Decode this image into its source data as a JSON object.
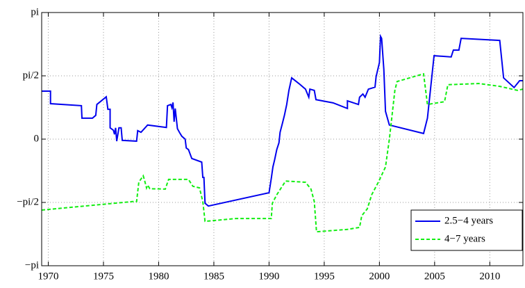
{
  "chart_data": {
    "type": "line",
    "xlim": [
      1969.4,
      2013
    ],
    "xticks": [
      1970,
      1975,
      1980,
      1985,
      1990,
      1995,
      2000,
      2005,
      2010
    ],
    "ylim": [
      -3.1416,
      3.1416
    ],
    "yticks": [
      {
        "value": -3.1416,
        "label": "−pi"
      },
      {
        "value": -1.5708,
        "label": "−pi/2"
      },
      0,
      {
        "value": 1.5708,
        "label": "pi/2"
      },
      {
        "value": 3.1416,
        "label": "pi"
      }
    ],
    "grid": true,
    "legend": "lower right",
    "series": [
      {
        "name": "2.5−4 years",
        "color": "#0000ee",
        "style": "solid",
        "x": [
          1969.4,
          1970.2,
          1970.2,
          1973.0,
          1973.05,
          1974.0,
          1974.3,
          1974.4,
          1975.25,
          1975.4,
          1975.6,
          1975.6,
          1975.9,
          1976.0,
          1976.1,
          1976.2,
          1976.4,
          1976.6,
          1976.7,
          1978.0,
          1978.1,
          1978.4,
          1979.0,
          1980.7,
          1980.8,
          1981.1,
          1981.2,
          1981.3,
          1981.4,
          1981.5,
          1981.7,
          1981.9,
          1982.1,
          1982.4,
          1982.5,
          1982.7,
          1983.0,
          1983.9,
          1984.0,
          1984.1,
          1984.2,
          1984.5,
          1990.0,
          1990.2,
          1990.35,
          1990.5,
          1990.7,
          1990.9,
          1991.0,
          1991.2,
          1991.4,
          1991.6,
          1991.8,
          1992.05,
          1992.7,
          1993.3,
          1993.6,
          1993.7,
          1994.1,
          1994.25,
          1995.8,
          1997.1,
          1997.1,
          1998.1,
          1998.2,
          1998.5,
          1998.7,
          1999.0,
          1999.6,
          1999.7,
          2000.0,
          2000.1,
          2000.2,
          2000.4,
          2000.55,
          2000.9,
          2004.0,
          2004.35,
          2004.95,
          2006.5,
          2006.7,
          2007.2,
          2007.4,
          2010.9,
          2011.25,
          2012.2,
          2012.7,
          2013.0
        ],
        "values": [
          1.19,
          1.19,
          0.88,
          0.83,
          0.52,
          0.52,
          0.59,
          0.86,
          1.05,
          0.74,
          0.74,
          0.28,
          0.22,
          0.12,
          0.28,
          -0.05,
          0.28,
          0.28,
          -0.03,
          -0.05,
          0.21,
          0.17,
          0.35,
          0.29,
          0.83,
          0.86,
          0.78,
          0.91,
          0.43,
          0.76,
          0.26,
          0.16,
          0.07,
          0,
          -0.22,
          -0.26,
          -0.48,
          -0.57,
          -0.95,
          -0.95,
          -1.59,
          -1.66,
          -1.33,
          -0.98,
          -0.69,
          -0.52,
          -0.26,
          -0.09,
          0.17,
          0.38,
          0.6,
          0.86,
          1.21,
          1.52,
          1.38,
          1.24,
          1.04,
          1.24,
          1.21,
          0.98,
          0.9,
          0.76,
          0.95,
          0.86,
          1.04,
          1.12,
          1.04,
          1.24,
          1.29,
          1.55,
          1.9,
          2.55,
          2.5,
          1.73,
          0.69,
          0.35,
          0.14,
          0.52,
          2.07,
          2.04,
          2.21,
          2.21,
          2.5,
          2.45,
          1.52,
          1.28,
          1.45,
          1.45
        ]
      },
      {
        "name": "4−7 years",
        "color": "#11ee11",
        "style": "dashed",
        "x": [
          1969.4,
          1977.6,
          1978.0,
          1978.2,
          1978.6,
          1978.7,
          1978.9,
          1979.0,
          1979.2,
          1980.6,
          1980.9,
          1982.7,
          1983.1,
          1983.7,
          1984.0,
          1984.2,
          1987.0,
          1990.2,
          1990.3,
          1990.7,
          1991.5,
          1993.3,
          1993.8,
          1994.1,
          1994.3,
          1997.1,
          1998.2,
          1998.4,
          1998.9,
          1999.3,
          1999.9,
          2000.55,
          2000.9,
          2001.4,
          2001.6,
          2004.0,
          2004.35,
          2005.9,
          2006.2,
          2009.0,
          2010.9,
          2012.5,
          2013.0
        ],
        "values": [
          -1.76,
          -1.55,
          -1.55,
          -1.07,
          -0.91,
          -1.0,
          -1.21,
          -1.14,
          -1.23,
          -1.24,
          -1.0,
          -1.0,
          -1.17,
          -1.21,
          -1.55,
          -2.04,
          -1.97,
          -1.97,
          -1.59,
          -1.38,
          -1.04,
          -1.07,
          -1.24,
          -1.55,
          -2.3,
          -2.24,
          -2.19,
          -1.9,
          -1.73,
          -1.38,
          -1.07,
          -0.69,
          0,
          1.21,
          1.43,
          1.62,
          0.86,
          0.93,
          1.35,
          1.38,
          1.31,
          1.21,
          1.24
        ]
      }
    ]
  }
}
